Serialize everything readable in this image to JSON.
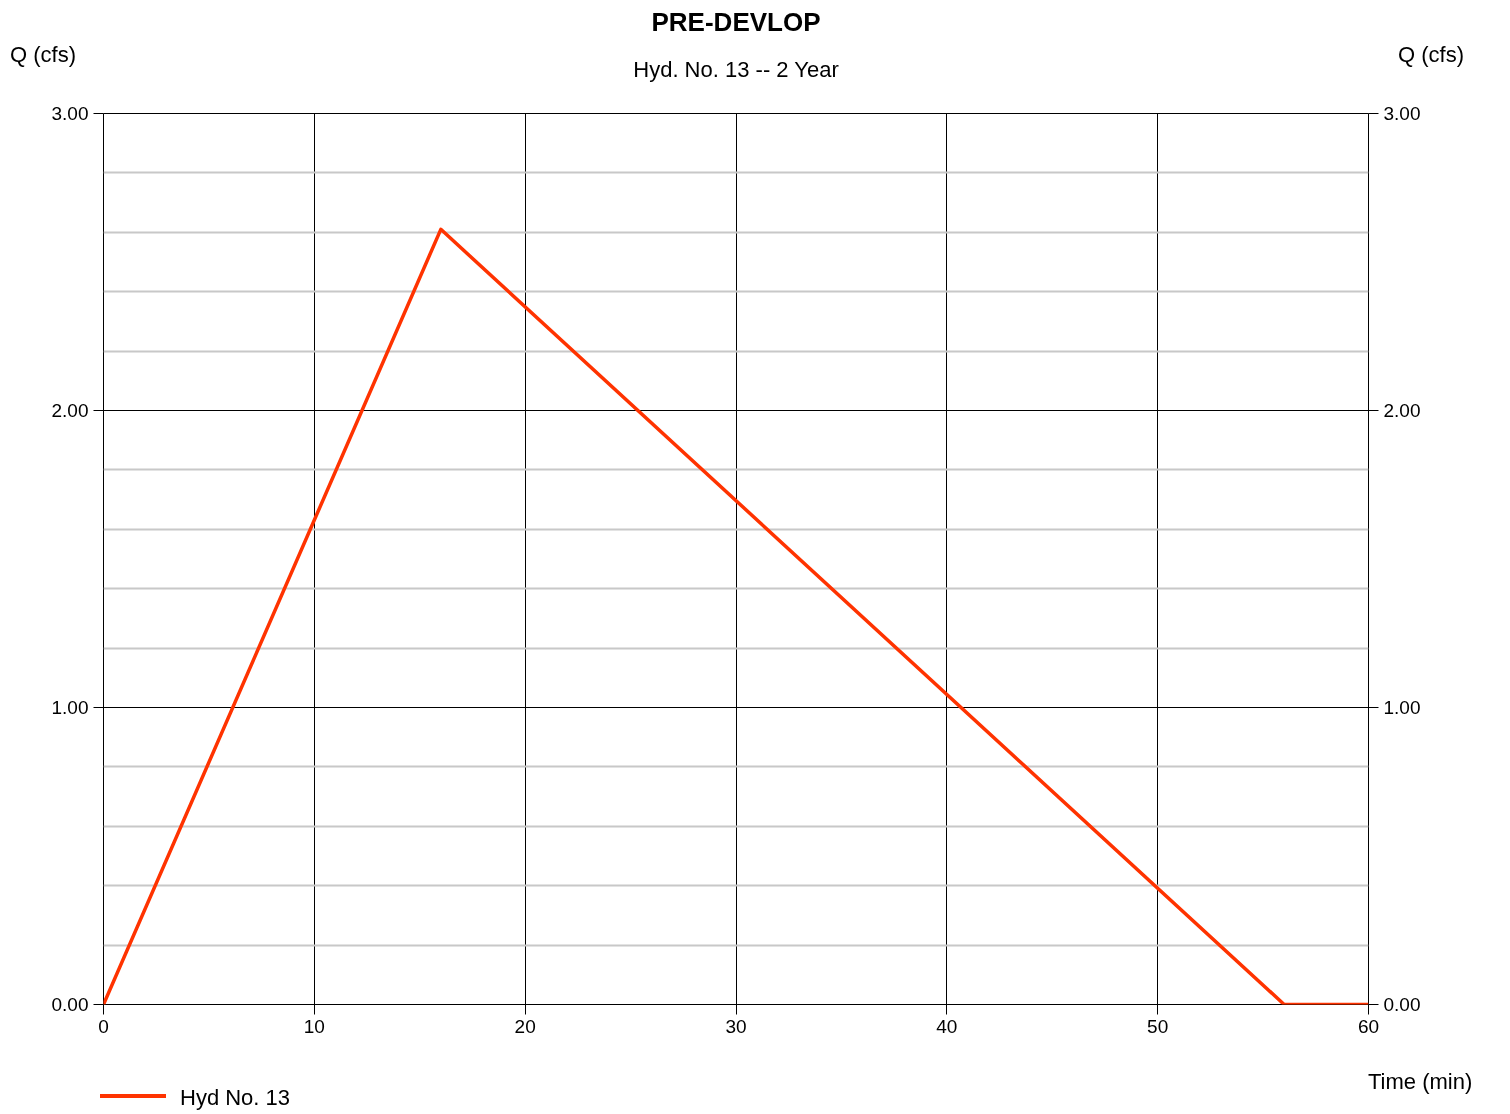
{
  "chart_data": {
    "type": "line",
    "title": "PRE-DEVLOP",
    "subtitle": "Hyd. No. 13 -- 2 Year",
    "xlabel": "Time (min)",
    "ylabel": "Q (cfs)",
    "y2label": "Q (cfs)",
    "series": [
      {
        "name": "Hyd No. 13",
        "color": "#ff3300",
        "x": [
          0,
          16,
          56,
          60
        ],
        "values": [
          0,
          2.61,
          0,
          0
        ]
      }
    ],
    "xlim": [
      0,
      60
    ],
    "xticks": [
      0,
      10,
      20,
      30,
      40,
      50,
      60
    ],
    "ylim": [
      0,
      3
    ],
    "yticks": [
      {
        "value": 0,
        "label": "0.00"
      },
      {
        "value": 1,
        "label": "1.00"
      },
      {
        "value": 2,
        "label": "2.00"
      },
      {
        "value": 3,
        "label": "3.00"
      }
    ],
    "y2lim": [
      0,
      3
    ],
    "y2ticks": [
      {
        "value": 0,
        "label": "0.00"
      },
      {
        "value": 1,
        "label": "1.00"
      },
      {
        "value": 2,
        "label": "2.00"
      },
      {
        "value": 3,
        "label": "3.00"
      }
    ],
    "grid": true,
    "legend": "bottom left",
    "marker": "none",
    "line_style": "solid"
  }
}
